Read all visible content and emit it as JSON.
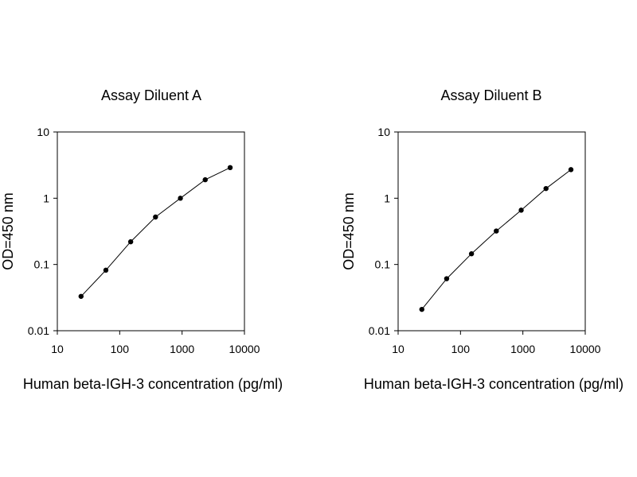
{
  "chart_data": [
    {
      "type": "line",
      "title": "Assay Diluent A",
      "xlabel": "Human beta-IGH-3 concentration (pg/ml)",
      "ylabel": "OD=450 nm",
      "xscale": "log",
      "yscale": "log",
      "xlim": [
        10,
        10000
      ],
      "ylim": [
        0.01,
        10
      ],
      "x_ticks": [
        "10",
        "100",
        "1000",
        "10000"
      ],
      "y_ticks": [
        "0.01",
        "0.1",
        "1",
        "10"
      ],
      "grid": false,
      "series": [
        {
          "x": [
            24,
            60,
            150,
            375,
            940,
            2350,
            5900
          ],
          "y": [
            0.033,
            0.082,
            0.22,
            0.52,
            1.0,
            1.9,
            2.9
          ]
        }
      ]
    },
    {
      "type": "line",
      "title": "Assay Diluent B",
      "xlabel": "Human beta-IGH-3 concentration (pg/ml)",
      "ylabel": "OD=450 nm",
      "xscale": "log",
      "yscale": "log",
      "xlim": [
        10,
        10000
      ],
      "ylim": [
        0.01,
        10
      ],
      "x_ticks": [
        "10",
        "100",
        "1000",
        "10000"
      ],
      "y_ticks": [
        "0.01",
        "0.1",
        "1",
        "10"
      ],
      "grid": false,
      "series": [
        {
          "x": [
            24,
            60,
            150,
            375,
            940,
            2350,
            5900
          ],
          "y": [
            0.021,
            0.061,
            0.145,
            0.32,
            0.66,
            1.4,
            2.7
          ]
        }
      ]
    }
  ]
}
